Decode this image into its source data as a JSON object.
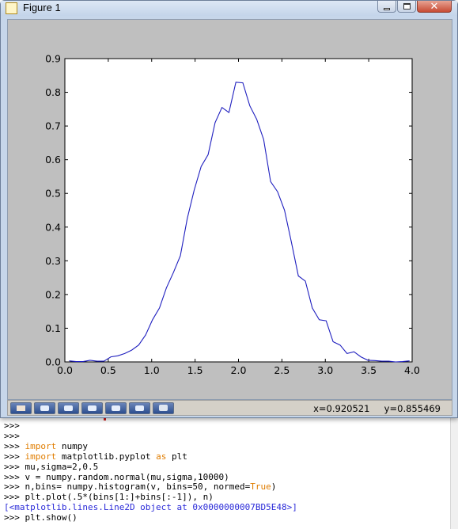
{
  "window": {
    "title": "Figure 1",
    "close_glyph": "✕"
  },
  "toolbar": {
    "buttons": [
      {
        "name": "home-button",
        "icon": "home-icon"
      },
      {
        "name": "back-button",
        "icon": "back-arrow-icon"
      },
      {
        "name": "forward-button",
        "icon": "forward-arrow-icon"
      },
      {
        "name": "pan-button",
        "icon": "pan-icon"
      },
      {
        "name": "zoom-button",
        "icon": "zoom-rect-icon"
      },
      {
        "name": "subplots-button",
        "icon": "subplots-icon"
      },
      {
        "name": "save-button",
        "icon": "save-icon"
      }
    ],
    "coords": "x=0.920521     y=0.855469"
  },
  "chart_data": {
    "type": "line",
    "title": "",
    "xlabel": "",
    "ylabel": "",
    "xlim": [
      0.0,
      4.0
    ],
    "ylim": [
      0.0,
      0.9
    ],
    "xticks": [
      "0.0",
      "0.5",
      "1.0",
      "1.5",
      "2.0",
      "2.5",
      "3.0",
      "3.5",
      "4.0"
    ],
    "yticks": [
      "0.0",
      "0.1",
      "0.2",
      "0.3",
      "0.4",
      "0.5",
      "0.6",
      "0.7",
      "0.8",
      "0.9"
    ],
    "grid": false,
    "line_color": "#1f1fbf",
    "series": [
      {
        "x": [
          0.05,
          0.13,
          0.21,
          0.29,
          0.37,
          0.45,
          0.53,
          0.61,
          0.69,
          0.77,
          0.85,
          0.93,
          1.01,
          1.09,
          1.17,
          1.25,
          1.33,
          1.41,
          1.49,
          1.57,
          1.65,
          1.73,
          1.81,
          1.89,
          1.97,
          2.05,
          2.13,
          2.21,
          2.29,
          2.37,
          2.45,
          2.53,
          2.61,
          2.69,
          2.77,
          2.85,
          2.93,
          3.01,
          3.09,
          3.17,
          3.25,
          3.33,
          3.41,
          3.49,
          3.57,
          3.65,
          3.73,
          3.81,
          3.89,
          3.97
        ],
        "y": [
          0.003,
          0.001,
          0.001,
          0.005,
          0.002,
          0.002,
          0.015,
          0.018,
          0.025,
          0.035,
          0.05,
          0.08,
          0.125,
          0.16,
          0.22,
          0.265,
          0.315,
          0.425,
          0.51,
          0.58,
          0.615,
          0.71,
          0.755,
          0.74,
          0.83,
          0.828,
          0.76,
          0.72,
          0.66,
          0.535,
          0.505,
          0.45,
          0.355,
          0.255,
          0.24,
          0.16,
          0.125,
          0.122,
          0.06,
          0.05,
          0.025,
          0.03,
          0.015,
          0.005,
          0.004,
          0.002,
          0.002,
          0.0,
          0.001,
          0.003
        ]
      }
    ]
  },
  "console": {
    "lines": [
      [
        {
          "t": ">>>",
          "c": "gt"
        }
      ],
      [
        {
          "t": ">>>",
          "c": "gt"
        }
      ],
      [
        {
          "t": ">>> ",
          "c": "gt"
        },
        {
          "t": "import",
          "c": "kw"
        },
        {
          "t": " numpy",
          "c": ""
        }
      ],
      [
        {
          "t": ">>> ",
          "c": "gt"
        },
        {
          "t": "import",
          "c": "kw"
        },
        {
          "t": " matplotlib.pyplot ",
          "c": ""
        },
        {
          "t": "as",
          "c": "kw"
        },
        {
          "t": " plt",
          "c": ""
        }
      ],
      [
        {
          "t": ">>> ",
          "c": "gt"
        },
        {
          "t": "mu,sigma=2,0.5",
          "c": ""
        }
      ],
      [
        {
          "t": ">>> ",
          "c": "gt"
        },
        {
          "t": "v = numpy.random.normal(mu,sigma,10000)",
          "c": ""
        }
      ],
      [
        {
          "t": ">>> ",
          "c": "gt"
        },
        {
          "t": "n,bins= numpy.histogram(v, bins=50, normed=",
          "c": ""
        },
        {
          "t": "True",
          "c": "kw"
        },
        {
          "t": ")",
          "c": ""
        }
      ],
      [
        {
          "t": ">>> ",
          "c": "gt"
        },
        {
          "t": "plt.plot(.5*(bins[1:]+bins[:-1]), n)",
          "c": ""
        }
      ],
      [
        {
          "t": "[<matplotlib.lines.Line2D object at 0x0000000007BD5E48>]",
          "c": "out"
        }
      ],
      [
        {
          "t": ">>> ",
          "c": "gt"
        },
        {
          "t": "plt.show()",
          "c": ""
        }
      ]
    ]
  }
}
